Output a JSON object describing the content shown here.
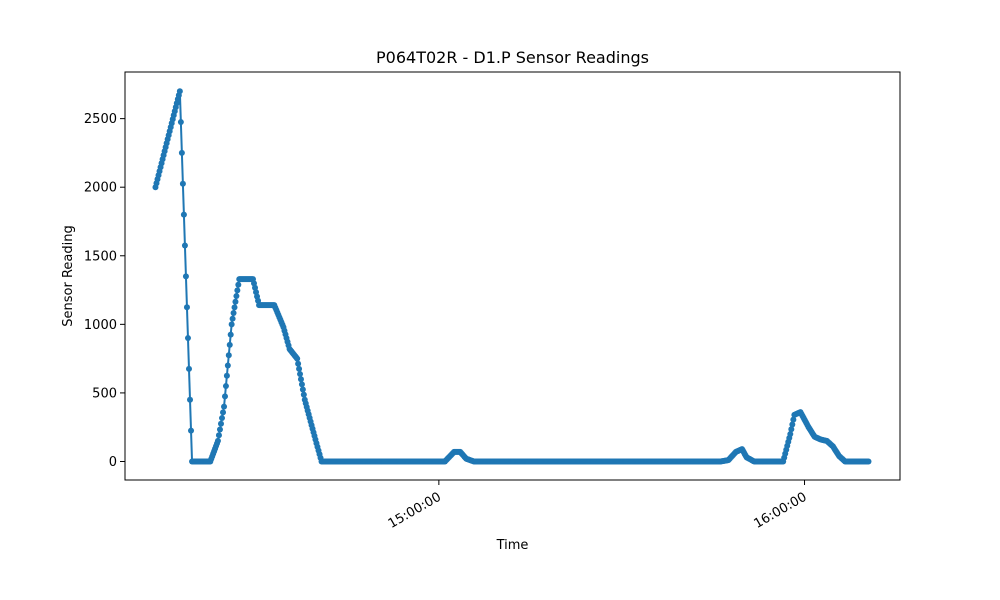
{
  "chart_data": {
    "type": "line",
    "title": "P064T02R - D1.P Sensor Readings",
    "xlabel": "Time",
    "ylabel": "Sensor Reading",
    "x_unit": "time of day",
    "xlim": [
      "14:08:30",
      "16:15:40"
    ],
    "ylim": [
      -135,
      2840
    ],
    "xticks": [
      {
        "value": "15:00:00",
        "label": "15:00:00"
      },
      {
        "value": "16:00:00",
        "label": "16:00:00"
      }
    ],
    "yticks": [
      0,
      500,
      1000,
      1500,
      2000,
      2500
    ],
    "grid": false,
    "legend": "none",
    "marker": "circle",
    "series": [
      {
        "color": "#1f77b4",
        "points": [
          [
            "14:13:30",
            2000
          ],
          [
            "14:17:30",
            2700
          ],
          [
            "14:19:30",
            0
          ],
          [
            "14:22:30",
            0
          ],
          [
            "14:23:45",
            150
          ],
          [
            "14:24:45",
            400
          ],
          [
            "14:26:00",
            1000
          ],
          [
            "14:27:15",
            1330
          ],
          [
            "14:29:30",
            1330
          ],
          [
            "14:30:30",
            1140
          ],
          [
            "14:33:00",
            1140
          ],
          [
            "14:34:30",
            980
          ],
          [
            "14:35:30",
            820
          ],
          [
            "14:36:45",
            750
          ],
          [
            "14:38:00",
            450
          ],
          [
            "14:39:45",
            160
          ],
          [
            "14:40:45",
            0
          ],
          [
            "15:01:00",
            0
          ],
          [
            "15:02:30",
            70
          ],
          [
            "15:03:30",
            70
          ],
          [
            "15:04:30",
            20
          ],
          [
            "15:05:45",
            0
          ],
          [
            "15:46:15",
            0
          ],
          [
            "15:47:30",
            10
          ],
          [
            "15:48:45",
            70
          ],
          [
            "15:49:45",
            90
          ],
          [
            "15:50:30",
            30
          ],
          [
            "15:51:45",
            0
          ],
          [
            "15:56:30",
            0
          ],
          [
            "15:57:40",
            200
          ],
          [
            "15:58:20",
            340
          ],
          [
            "15:59:20",
            360
          ],
          [
            "16:00:40",
            250
          ],
          [
            "16:01:40",
            180
          ],
          [
            "16:02:40",
            160
          ],
          [
            "16:03:40",
            150
          ],
          [
            "16:04:40",
            110
          ],
          [
            "16:05:40",
            40
          ],
          [
            "16:06:40",
            0
          ],
          [
            "16:10:30",
            0
          ]
        ]
      }
    ]
  }
}
